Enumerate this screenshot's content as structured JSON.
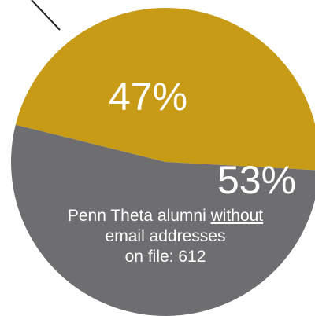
{
  "chart_data": {
    "type": "pie",
    "slices": [
      {
        "label": "47%",
        "value": 47,
        "color": "#c89b17"
      },
      {
        "label": "53%",
        "value": 53,
        "color": "#6e6e71"
      }
    ],
    "annotation": {
      "line1_before": "Penn Theta alumni ",
      "line1_emphasis": "without",
      "line2": "email addresses",
      "line3": "on file: 612"
    }
  }
}
